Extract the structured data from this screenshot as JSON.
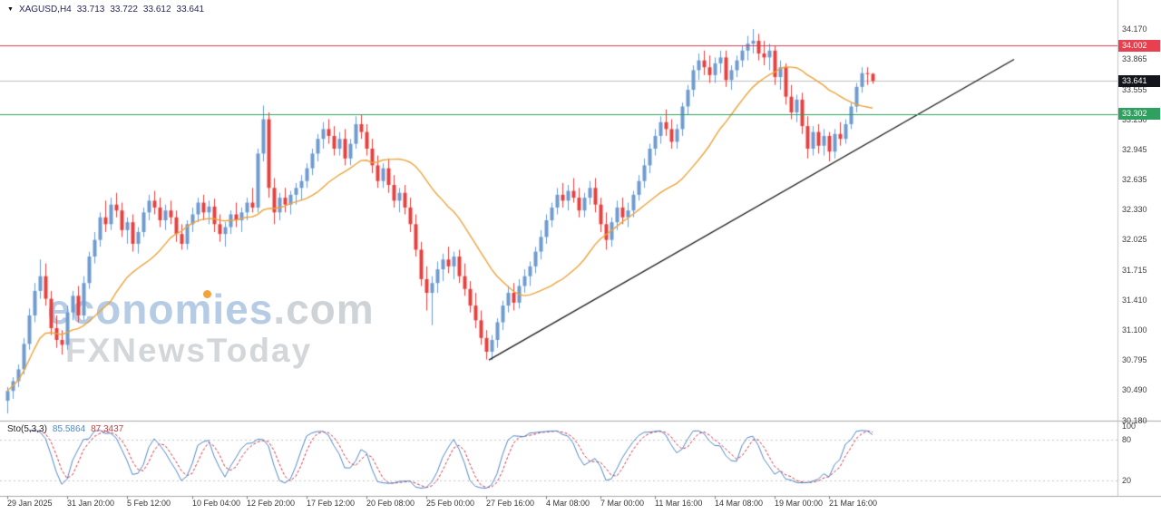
{
  "quote_bar": {
    "dropdown_icon": "▼",
    "symbol": "XAGUSD,H4",
    "open": "33.713",
    "high": "33.722",
    "low": "33.612",
    "close": "33.641"
  },
  "watermark": {
    "brand": "economies",
    "domain": ".com",
    "subtitle": "FXNewsToday"
  },
  "indicator_label": {
    "name": "Sto(5,3,3)",
    "value_k": "85.5864",
    "value_d": "87.3437"
  },
  "chart_data": {
    "type": "candlestick",
    "symbol": "XAGUSD",
    "timeframe": "H4",
    "last_quote": {
      "open": 33.713,
      "high": 33.722,
      "low": 33.612,
      "close": 33.641
    },
    "style": {
      "up_color": "#6f9bd2",
      "down_color": "#e8403f"
    },
    "y_axis": {
      "range": [
        30.1,
        34.25
      ],
      "ticks": [
        "34.170",
        "33.865",
        "33.555",
        "33.250",
        "32.945",
        "32.635",
        "32.330",
        "32.025",
        "31.715",
        "31.410",
        "31.100",
        "30.795",
        "30.490",
        "30.180"
      ]
    },
    "x_axis": {
      "ticks": [
        {
          "label": "29 Jan 2025",
          "candle": 0
        },
        {
          "label": "31 Jan 20:00",
          "candle": 11
        },
        {
          "label": "5 Feb 12:00",
          "candle": 22
        },
        {
          "label": "10 Feb 04:00",
          "candle": 34
        },
        {
          "label": "12 Feb 20:00",
          "candle": 44
        },
        {
          "label": "17 Feb 12:00",
          "candle": 55
        },
        {
          "label": "20 Feb 08:00",
          "candle": 66
        },
        {
          "label": "25 Feb 00:00",
          "candle": 77
        },
        {
          "label": "27 Feb 16:00",
          "candle": 88
        },
        {
          "label": "4 Mar 08:00",
          "candle": 99
        },
        {
          "label": "7 Mar 00:00",
          "candle": 109
        },
        {
          "label": "11 Mar 16:00",
          "candle": 119
        },
        {
          "label": "14 Mar 08:00",
          "candle": 130
        },
        {
          "label": "19 Mar 00:00",
          "candle": 141
        },
        {
          "label": "21 Mar 16:00",
          "candle": 151
        }
      ]
    },
    "candles": [
      [
        30.38,
        30.52,
        30.25,
        30.48
      ],
      [
        30.48,
        30.62,
        30.4,
        30.58
      ],
      [
        30.58,
        30.75,
        30.52,
        30.7
      ],
      [
        30.7,
        31.02,
        30.65,
        30.96
      ],
      [
        30.96,
        31.32,
        30.9,
        31.25
      ],
      [
        31.25,
        31.58,
        31.18,
        31.5
      ],
      [
        31.5,
        31.82,
        31.42,
        31.65
      ],
      [
        31.65,
        31.78,
        31.35,
        31.42
      ],
      [
        31.42,
        31.5,
        31.05,
        31.12
      ],
      [
        31.12,
        31.25,
        30.92,
        31.0
      ],
      [
        31.0,
        31.1,
        30.85,
        30.95
      ],
      [
        30.95,
        31.35,
        30.9,
        31.28
      ],
      [
        31.28,
        31.5,
        31.2,
        31.45
      ],
      [
        31.45,
        31.55,
        31.18,
        31.25
      ],
      [
        31.25,
        31.65,
        31.2,
        31.58
      ],
      [
        31.58,
        31.9,
        31.52,
        31.85
      ],
      [
        31.85,
        32.1,
        31.78,
        32.02
      ],
      [
        32.02,
        32.3,
        31.95,
        32.25
      ],
      [
        32.25,
        32.42,
        32.1,
        32.18
      ],
      [
        32.18,
        32.45,
        32.12,
        32.38
      ],
      [
        32.38,
        32.5,
        32.25,
        32.32
      ],
      [
        32.32,
        32.4,
        32.05,
        32.12
      ],
      [
        32.12,
        32.25,
        31.98,
        32.2
      ],
      [
        32.2,
        32.28,
        31.9,
        31.98
      ],
      [
        31.98,
        32.15,
        31.88,
        32.1
      ],
      [
        32.1,
        32.35,
        32.05,
        32.3
      ],
      [
        32.3,
        32.48,
        32.22,
        32.42
      ],
      [
        32.42,
        32.52,
        32.28,
        32.35
      ],
      [
        32.35,
        32.45,
        32.15,
        32.22
      ],
      [
        32.22,
        32.38,
        32.12,
        32.32
      ],
      [
        32.32,
        32.42,
        32.18,
        32.25
      ],
      [
        32.25,
        32.32,
        32.0,
        32.08
      ],
      [
        32.08,
        32.18,
        31.92,
        31.98
      ],
      [
        31.98,
        32.22,
        31.92,
        32.18
      ],
      [
        32.18,
        32.35,
        32.1,
        32.28
      ],
      [
        32.28,
        32.45,
        32.2,
        32.4
      ],
      [
        32.4,
        32.48,
        32.22,
        32.3
      ],
      [
        32.3,
        32.42,
        32.18,
        32.36
      ],
      [
        32.36,
        32.44,
        32.1,
        32.18
      ],
      [
        32.18,
        32.28,
        32.0,
        32.08
      ],
      [
        32.08,
        32.2,
        31.95,
        32.15
      ],
      [
        32.15,
        32.32,
        32.08,
        32.28
      ],
      [
        32.28,
        32.4,
        32.15,
        32.22
      ],
      [
        32.22,
        32.35,
        32.1,
        32.3
      ],
      [
        32.3,
        32.45,
        32.22,
        32.4
      ],
      [
        32.4,
        32.55,
        32.3,
        32.35
      ],
      [
        32.35,
        32.95,
        32.3,
        32.9
      ],
      [
        32.9,
        33.39,
        32.82,
        33.25
      ],
      [
        33.25,
        33.32,
        32.45,
        32.55
      ],
      [
        32.55,
        32.65,
        32.18,
        32.3
      ],
      [
        32.3,
        32.5,
        32.22,
        32.45
      ],
      [
        32.45,
        32.55,
        32.3,
        32.38
      ],
      [
        32.38,
        32.52,
        32.28,
        32.48
      ],
      [
        32.48,
        32.6,
        32.38,
        32.55
      ],
      [
        32.55,
        32.68,
        32.42,
        32.62
      ],
      [
        32.62,
        32.8,
        32.55,
        32.75
      ],
      [
        32.75,
        32.95,
        32.68,
        32.9
      ],
      [
        32.9,
        33.1,
        32.82,
        33.05
      ],
      [
        33.05,
        33.22,
        32.95,
        33.15
      ],
      [
        33.15,
        33.25,
        33.0,
        33.08
      ],
      [
        33.08,
        33.18,
        32.88,
        32.95
      ],
      [
        32.95,
        33.12,
        32.88,
        33.05
      ],
      [
        33.05,
        33.15,
        32.78,
        32.85
      ],
      [
        32.85,
        33.05,
        32.78,
        33.0
      ],
      [
        33.0,
        33.28,
        32.95,
        33.2
      ],
      [
        33.2,
        33.3,
        33.05,
        33.12
      ],
      [
        33.12,
        33.2,
        32.88,
        32.95
      ],
      [
        32.95,
        33.05,
        32.7,
        32.78
      ],
      [
        32.78,
        32.88,
        32.55,
        32.62
      ],
      [
        32.62,
        32.8,
        32.55,
        32.75
      ],
      [
        32.75,
        32.85,
        32.5,
        32.58
      ],
      [
        32.58,
        32.68,
        32.35,
        32.42
      ],
      [
        32.42,
        32.55,
        32.3,
        32.5
      ],
      [
        32.5,
        32.58,
        32.28,
        32.35
      ],
      [
        32.35,
        32.45,
        32.1,
        32.18
      ],
      [
        32.18,
        32.28,
        31.85,
        31.92
      ],
      [
        31.92,
        32.0,
        31.55,
        31.62
      ],
      [
        31.62,
        31.75,
        31.3,
        31.48
      ],
      [
        31.48,
        31.65,
        31.15,
        31.58
      ],
      [
        31.58,
        31.8,
        31.48,
        31.72
      ],
      [
        31.72,
        31.88,
        31.6,
        31.82
      ],
      [
        31.82,
        31.95,
        31.68,
        31.75
      ],
      [
        31.75,
        31.9,
        31.62,
        31.85
      ],
      [
        31.85,
        31.92,
        31.58,
        31.65
      ],
      [
        31.65,
        31.78,
        31.45,
        31.52
      ],
      [
        31.52,
        31.6,
        31.28,
        31.35
      ],
      [
        31.35,
        31.48,
        31.12,
        31.2
      ],
      [
        31.2,
        31.3,
        30.95,
        31.02
      ],
      [
        31.02,
        31.1,
        30.8,
        30.88
      ],
      [
        30.88,
        31.05,
        30.795,
        31.0
      ],
      [
        31.0,
        31.22,
        30.92,
        31.18
      ],
      [
        31.18,
        31.4,
        31.1,
        31.35
      ],
      [
        31.35,
        31.55,
        31.28,
        31.48
      ],
      [
        31.48,
        31.58,
        31.3,
        31.38
      ],
      [
        31.38,
        31.62,
        31.32,
        31.55
      ],
      [
        31.55,
        31.72,
        31.48,
        31.65
      ],
      [
        31.65,
        31.8,
        31.55,
        31.75
      ],
      [
        31.75,
        31.95,
        31.68,
        31.9
      ],
      [
        31.9,
        32.12,
        31.82,
        32.05
      ],
      [
        32.05,
        32.28,
        31.98,
        32.22
      ],
      [
        32.22,
        32.4,
        32.15,
        32.35
      ],
      [
        32.35,
        32.55,
        32.28,
        32.48
      ],
      [
        32.48,
        32.6,
        32.35,
        32.42
      ],
      [
        32.42,
        32.58,
        32.32,
        32.52
      ],
      [
        32.52,
        32.65,
        32.4,
        32.45
      ],
      [
        32.45,
        32.55,
        32.25,
        32.32
      ],
      [
        32.32,
        32.5,
        32.25,
        32.45
      ],
      [
        32.45,
        32.62,
        32.38,
        32.55
      ],
      [
        32.55,
        32.65,
        32.3,
        32.38
      ],
      [
        32.38,
        32.45,
        32.1,
        32.18
      ],
      [
        32.18,
        32.3,
        31.92,
        32.02
      ],
      [
        32.02,
        32.25,
        31.95,
        32.2
      ],
      [
        32.2,
        32.42,
        32.12,
        32.35
      ],
      [
        32.35,
        32.45,
        32.18,
        32.25
      ],
      [
        32.25,
        32.4,
        32.15,
        32.32
      ],
      [
        32.32,
        32.52,
        32.25,
        32.48
      ],
      [
        32.48,
        32.68,
        32.42,
        32.62
      ],
      [
        32.62,
        32.85,
        32.55,
        32.78
      ],
      [
        32.78,
        33.0,
        32.7,
        32.95
      ],
      [
        32.95,
        33.15,
        32.88,
        33.08
      ],
      [
        33.08,
        33.28,
        33.0,
        33.22
      ],
      [
        33.22,
        33.35,
        33.08,
        33.15
      ],
      [
        33.15,
        33.25,
        32.95,
        33.02
      ],
      [
        33.02,
        33.2,
        32.95,
        33.15
      ],
      [
        33.15,
        33.42,
        33.08,
        33.38
      ],
      [
        33.38,
        33.6,
        33.3,
        33.55
      ],
      [
        33.55,
        33.8,
        33.48,
        33.75
      ],
      [
        33.75,
        33.92,
        33.65,
        33.85
      ],
      [
        33.85,
        33.95,
        33.7,
        33.78
      ],
      [
        33.78,
        33.9,
        33.62,
        33.7
      ],
      [
        33.7,
        33.88,
        33.62,
        33.82
      ],
      [
        33.82,
        33.95,
        33.72,
        33.88
      ],
      [
        33.88,
        33.95,
        33.58,
        33.65
      ],
      [
        33.65,
        33.8,
        33.55,
        33.75
      ],
      [
        33.75,
        33.9,
        33.68,
        33.85
      ],
      [
        33.85,
        34.0,
        33.78,
        33.95
      ],
      [
        33.95,
        34.1,
        33.85,
        34.02
      ],
      [
        34.02,
        34.17,
        33.92,
        34.05
      ],
      [
        34.05,
        34.12,
        33.85,
        33.92
      ],
      [
        33.92,
        34.05,
        33.8,
        33.88
      ],
      [
        33.88,
        34.02,
        33.75,
        33.95
      ],
      [
        33.95,
        34.0,
        33.6,
        33.68
      ],
      [
        33.68,
        33.85,
        33.55,
        33.78
      ],
      [
        33.78,
        33.82,
        33.4,
        33.48
      ],
      [
        33.48,
        33.6,
        33.25,
        33.32
      ],
      [
        33.32,
        33.5,
        33.22,
        33.45
      ],
      [
        33.45,
        33.52,
        33.1,
        33.18
      ],
      [
        33.18,
        33.28,
        32.85,
        32.95
      ],
      [
        32.95,
        33.18,
        32.88,
        33.12
      ],
      [
        33.12,
        33.2,
        32.9,
        32.98
      ],
      [
        32.98,
        33.15,
        32.88,
        33.08
      ],
      [
        33.08,
        33.12,
        32.82,
        32.92
      ],
      [
        32.92,
        33.15,
        32.85,
        33.1
      ],
      [
        33.1,
        33.22,
        32.98,
        33.05
      ],
      [
        33.05,
        33.25,
        33.0,
        33.2
      ],
      [
        33.2,
        33.42,
        33.15,
        33.38
      ],
      [
        33.38,
        33.62,
        33.32,
        33.58
      ],
      [
        33.58,
        33.78,
        33.52,
        33.72
      ],
      [
        33.72,
        33.78,
        33.6,
        33.713
      ],
      [
        33.713,
        33.722,
        33.612,
        33.641
      ]
    ],
    "overlays": {
      "moving_average": {
        "type": "sma",
        "period": 20,
        "color": "#eda33b"
      },
      "trendline": {
        "from_candle": 88.5,
        "from_price": 30.795,
        "to_candle": 185,
        "to_price": 33.86,
        "color": "#1a1a1a"
      },
      "hlines": [
        {
          "role": "resistance",
          "price": 34.002,
          "label": "34.002",
          "color": "#cc4050"
        },
        {
          "role": "support",
          "price": 33.302,
          "label": "33.302",
          "color": "#2fa05f"
        },
        {
          "role": "last-price",
          "price": 33.641,
          "label": "33.641",
          "color": "#bfbfbf"
        }
      ]
    },
    "indicator_pane": {
      "type": "stochastic",
      "name": "Sto(5,3,3)",
      "k_period": 5,
      "slowing": 3,
      "d_period": 3,
      "value_k": 85.5864,
      "value_d": 87.3437,
      "range": [
        0,
        100
      ],
      "levels": [
        100,
        80,
        20
      ],
      "k_color": "#4f86c6",
      "d_color": "#cc3344"
    }
  }
}
